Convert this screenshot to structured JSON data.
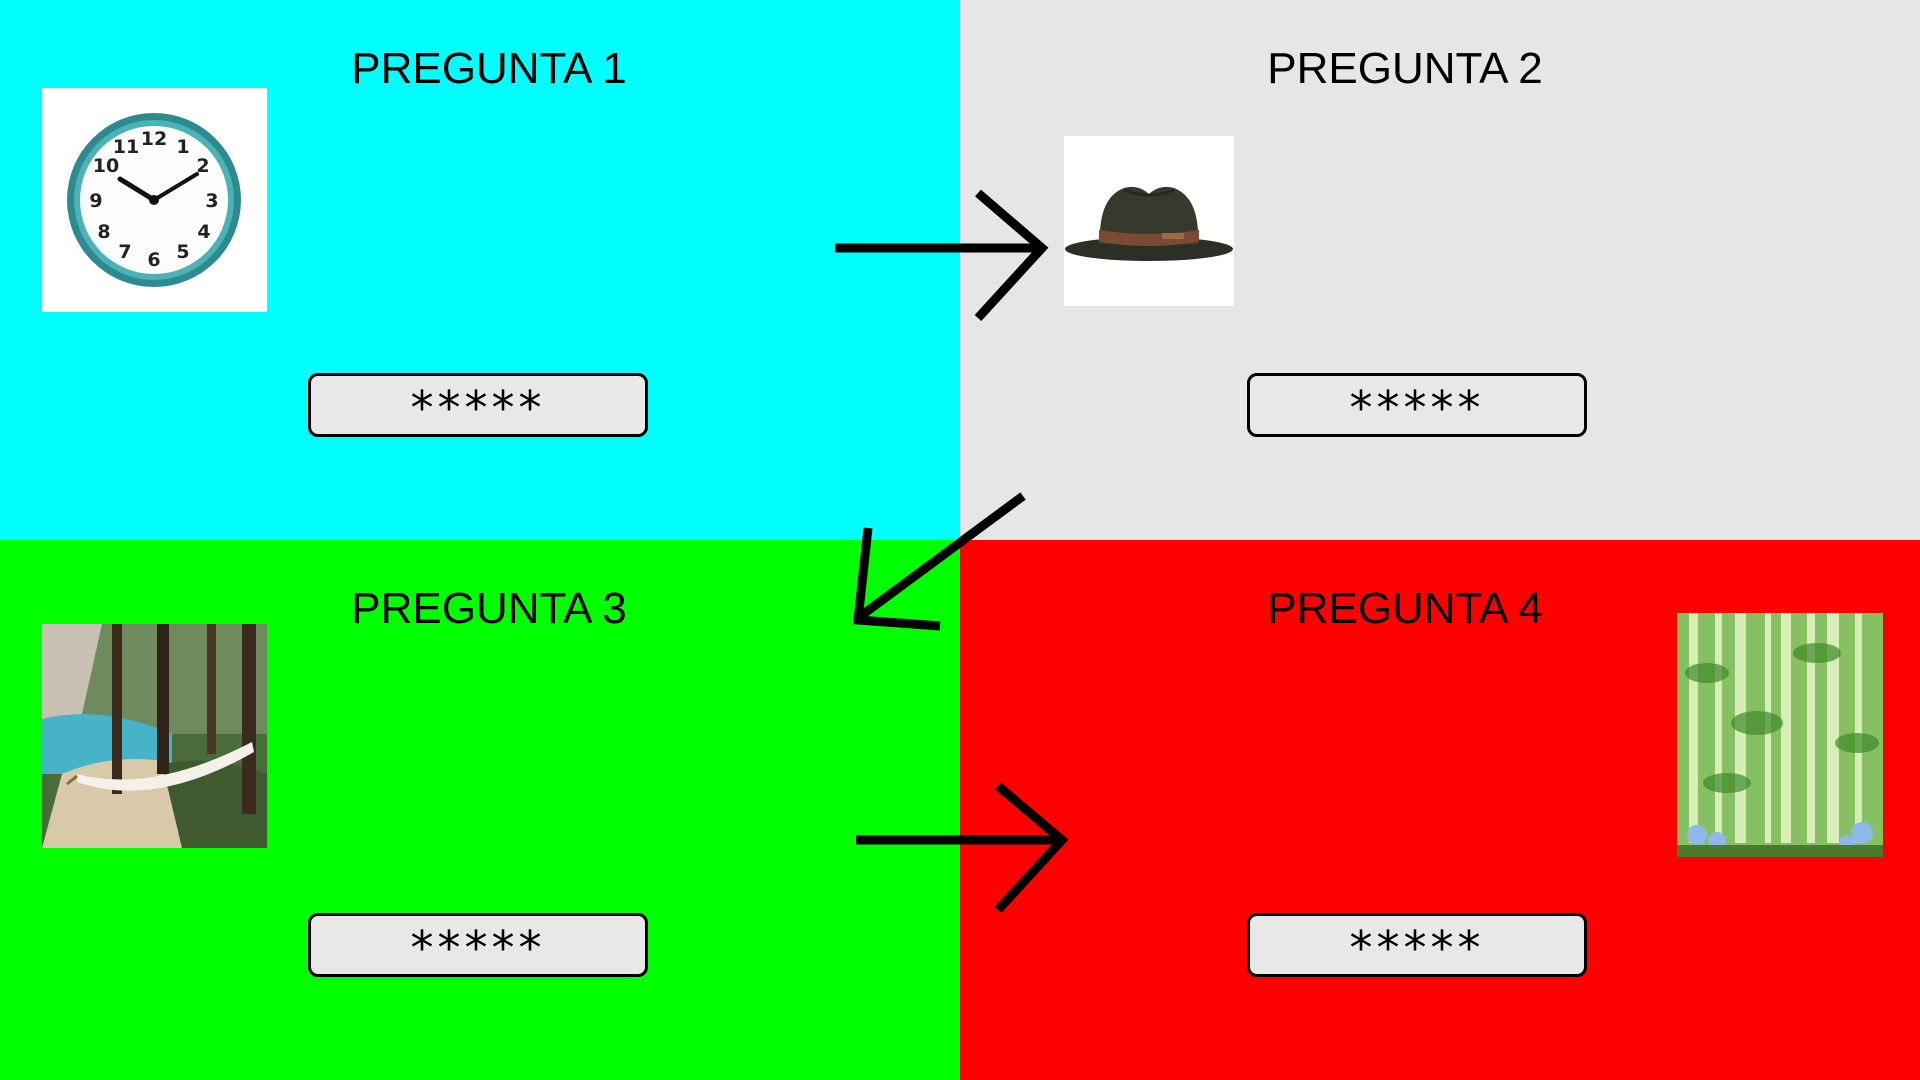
{
  "panels": [
    {
      "title": "PREGUNTA 1",
      "answer": "*****",
      "color": "#00FFFF",
      "picture": "wall-clock"
    },
    {
      "title": "PREGUNTA 2",
      "answer": "*****",
      "color": "#E6E6E6",
      "picture": "fedora-hat"
    },
    {
      "title": "PREGUNTA 3",
      "answer": "*****",
      "color": "#00FF00",
      "picture": "hammock-lake"
    },
    {
      "title": "PREGUNTA 4",
      "answer": "*****",
      "color": "#FF0000",
      "picture": "bamboo-forest"
    }
  ]
}
